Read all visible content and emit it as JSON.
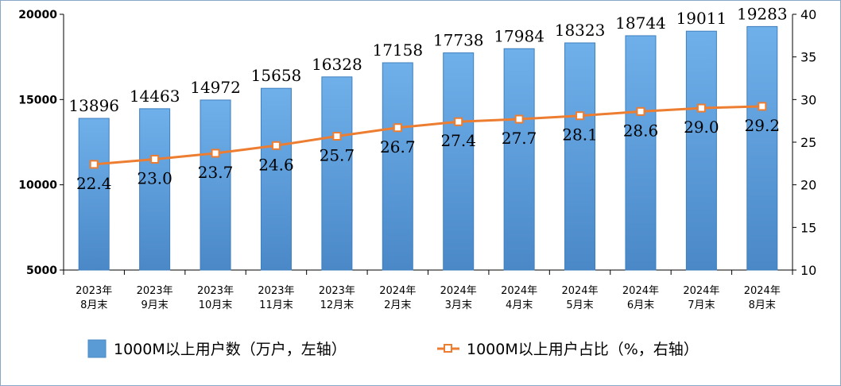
{
  "chart_data": {
    "type": "bar",
    "categories": [
      [
        "2023年",
        "8月末"
      ],
      [
        "2023年",
        "9月末"
      ],
      [
        "2023年",
        "10月末"
      ],
      [
        "2023年",
        "11月末"
      ],
      [
        "2023年",
        "12月末"
      ],
      [
        "2024年",
        "2月末"
      ],
      [
        "2024年",
        "3月末"
      ],
      [
        "2024年",
        "4月末"
      ],
      [
        "2024年",
        "5月末"
      ],
      [
        "2024年",
        "6月末"
      ],
      [
        "2024年",
        "7月末"
      ],
      [
        "2024年",
        "8月末"
      ]
    ],
    "series": [
      {
        "name": "1000M以上用户数（万户，左轴）",
        "type": "bar",
        "axis": "left",
        "color": "#5b9bd5",
        "values": [
          13896,
          14463,
          14972,
          15658,
          16328,
          17158,
          17738,
          17984,
          18323,
          18744,
          19011,
          19283
        ]
      },
      {
        "name": "1000M以上用户占比（%，右轴）",
        "type": "line",
        "axis": "right",
        "color": "#ed7d31",
        "values": [
          22.4,
          23.0,
          23.7,
          24.6,
          25.7,
          26.7,
          27.4,
          27.7,
          28.1,
          28.6,
          29.0,
          29.2
        ]
      }
    ],
    "y_left": {
      "min": 5000,
      "max": 20000,
      "ticks": [
        5000,
        10000,
        15000,
        20000
      ]
    },
    "y_right": {
      "min": 10,
      "max": 40,
      "ticks": [
        10,
        15,
        20,
        25,
        30,
        35,
        40
      ]
    },
    "legend_position": "bottom",
    "grid": false
  }
}
